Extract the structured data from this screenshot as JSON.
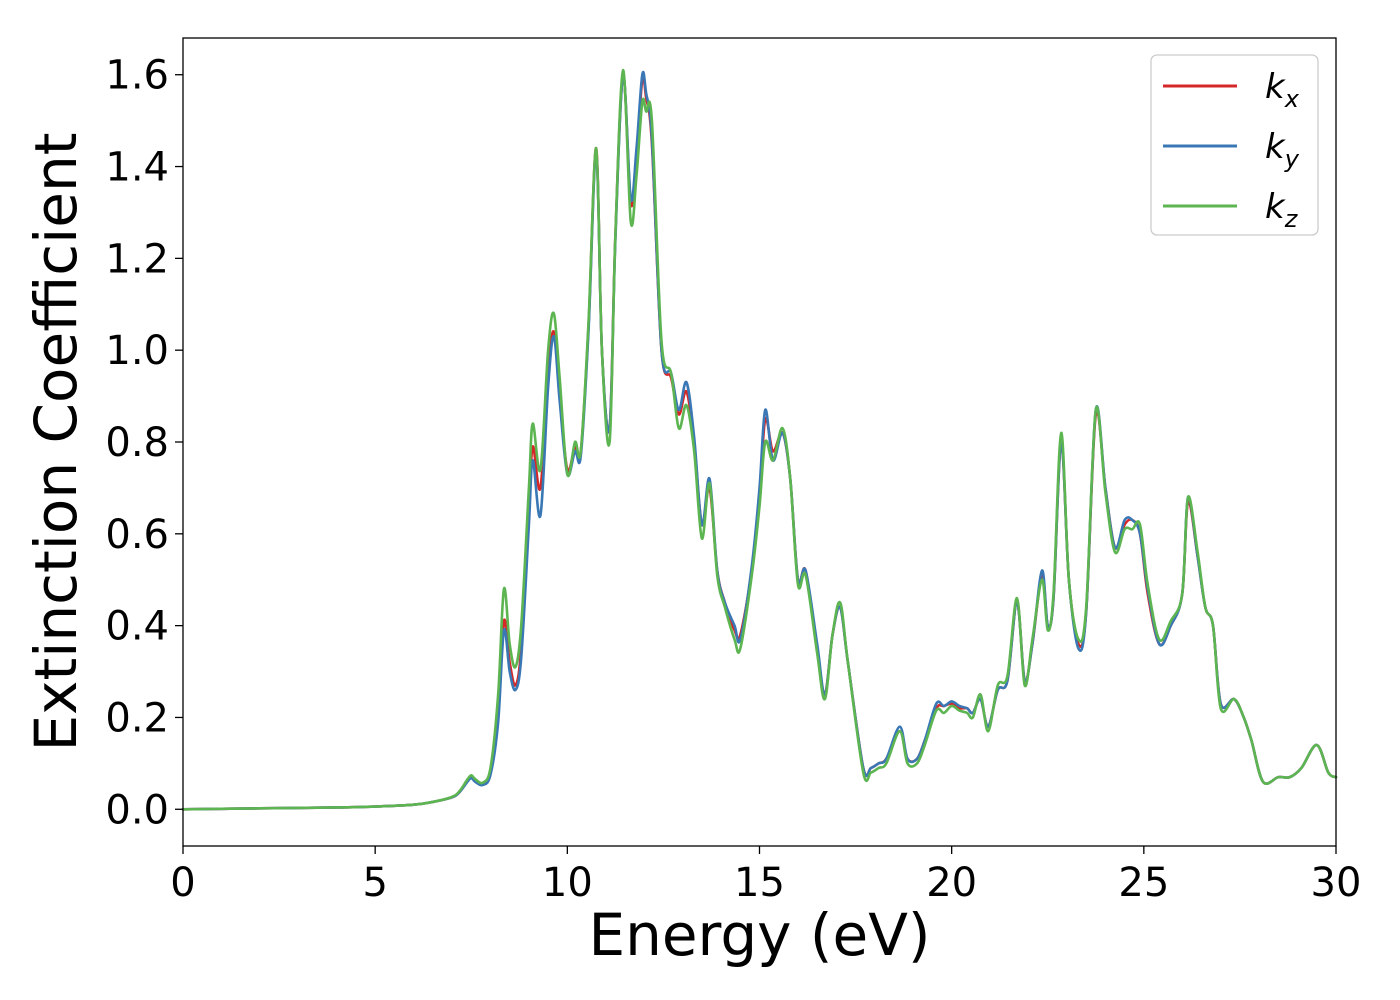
{
  "chart_data": {
    "type": "line",
    "title": "",
    "xlabel": "Energy (eV)",
    "ylabel": "Extinction Coefficient",
    "xlim": [
      0,
      30
    ],
    "ylim": [
      -0.08,
      1.68
    ],
    "xticks": [
      0,
      5,
      10,
      15,
      20,
      25,
      30
    ],
    "yticks": [
      0.0,
      0.2,
      0.4,
      0.6,
      0.8,
      1.0,
      1.2,
      1.4,
      1.6
    ],
    "ytick_format": 1,
    "grid": false,
    "legend_position": "top-right",
    "colors": {
      "kx": "#d62728",
      "ky": "#3a78b5",
      "kz": "#5db552"
    },
    "series": [
      {
        "name": "k_x",
        "legend_main": "k",
        "legend_sub": "x",
        "color": "#d62728",
        "x": [
          0,
          2,
          4,
          5,
          6,
          6.5,
          7,
          7.2,
          7.4,
          7.5,
          7.6,
          7.8,
          8.0,
          8.2,
          8.35,
          8.5,
          8.65,
          8.8,
          9.0,
          9.1,
          9.3,
          9.5,
          9.65,
          9.8,
          10.0,
          10.2,
          10.35,
          10.55,
          10.75,
          10.9,
          11.1,
          11.25,
          11.45,
          11.65,
          11.8,
          11.95,
          12.05,
          12.2,
          12.45,
          12.7,
          12.9,
          13.1,
          13.3,
          13.5,
          13.7,
          13.9,
          14.1,
          14.35,
          14.5,
          14.8,
          15.0,
          15.15,
          15.35,
          15.6,
          15.8,
          16.0,
          16.2,
          16.5,
          16.7,
          16.9,
          17.1,
          17.3,
          17.7,
          17.9,
          18.1,
          18.3,
          18.65,
          18.85,
          19.1,
          19.3,
          19.6,
          19.8,
          20.0,
          20.2,
          20.4,
          20.55,
          20.75,
          20.95,
          21.2,
          21.45,
          21.7,
          21.9,
          22.1,
          22.35,
          22.5,
          22.65,
          22.85,
          23.05,
          23.3,
          23.5,
          23.75,
          24.0,
          24.25,
          24.5,
          24.7,
          24.9,
          25.1,
          25.4,
          25.7,
          26.0,
          26.15,
          26.4,
          26.6,
          26.8,
          27.0,
          27.35,
          27.6,
          27.8,
          28.1,
          28.5,
          28.8,
          29.1,
          29.5,
          29.8,
          30.0
        ],
        "y": [
          0,
          0.002,
          0.004,
          0.006,
          0.01,
          0.016,
          0.026,
          0.038,
          0.062,
          0.07,
          0.062,
          0.055,
          0.08,
          0.2,
          0.41,
          0.32,
          0.27,
          0.35,
          0.65,
          0.79,
          0.7,
          0.95,
          1.04,
          0.9,
          0.74,
          0.79,
          0.78,
          1.05,
          1.44,
          1.0,
          0.83,
          1.25,
          1.6,
          1.32,
          1.42,
          1.59,
          1.55,
          1.45,
          1.0,
          0.94,
          0.86,
          0.91,
          0.8,
          0.62,
          0.7,
          0.52,
          0.45,
          0.39,
          0.38,
          0.52,
          0.68,
          0.85,
          0.78,
          0.82,
          0.72,
          0.5,
          0.52,
          0.35,
          0.25,
          0.38,
          0.44,
          0.32,
          0.09,
          0.09,
          0.1,
          0.11,
          0.17,
          0.11,
          0.11,
          0.15,
          0.22,
          0.225,
          0.23,
          0.22,
          0.22,
          0.21,
          0.24,
          0.18,
          0.26,
          0.28,
          0.45,
          0.28,
          0.36,
          0.51,
          0.4,
          0.46,
          0.8,
          0.5,
          0.36,
          0.43,
          0.86,
          0.7,
          0.57,
          0.62,
          0.63,
          0.6,
          0.47,
          0.36,
          0.4,
          0.47,
          0.67,
          0.55,
          0.44,
          0.4,
          0.23,
          0.24,
          0.2,
          0.15,
          0.06,
          0.07,
          0.07,
          0.09,
          0.14,
          0.08,
          0.07
        ]
      },
      {
        "name": "k_y",
        "legend_main": "k",
        "legend_sub": "y",
        "color": "#3a78b5",
        "x": [
          0,
          2,
          4,
          5,
          6,
          6.5,
          7,
          7.2,
          7.4,
          7.5,
          7.6,
          7.8,
          8.0,
          8.2,
          8.35,
          8.5,
          8.65,
          8.8,
          9.0,
          9.1,
          9.3,
          9.5,
          9.65,
          9.8,
          10.0,
          10.2,
          10.35,
          10.55,
          10.75,
          10.9,
          11.1,
          11.25,
          11.45,
          11.65,
          11.8,
          11.95,
          12.05,
          12.2,
          12.45,
          12.7,
          12.9,
          13.1,
          13.3,
          13.5,
          13.7,
          13.9,
          14.1,
          14.35,
          14.5,
          14.8,
          15.0,
          15.15,
          15.35,
          15.6,
          15.8,
          16.0,
          16.2,
          16.5,
          16.7,
          16.9,
          17.1,
          17.3,
          17.7,
          17.9,
          18.1,
          18.3,
          18.65,
          18.85,
          19.1,
          19.3,
          19.6,
          19.8,
          20.0,
          20.2,
          20.4,
          20.55,
          20.75,
          20.95,
          21.2,
          21.45,
          21.7,
          21.9,
          22.1,
          22.35,
          22.5,
          22.65,
          22.85,
          23.05,
          23.3,
          23.5,
          23.75,
          24.0,
          24.25,
          24.5,
          24.7,
          24.9,
          25.1,
          25.4,
          25.7,
          26.0,
          26.15,
          26.4,
          26.6,
          26.8,
          27.0,
          27.35,
          27.6,
          27.8,
          28.1,
          28.5,
          28.8,
          29.1,
          29.5,
          29.8,
          30.0
        ],
        "y": [
          0,
          0.002,
          0.004,
          0.006,
          0.01,
          0.016,
          0.026,
          0.038,
          0.06,
          0.068,
          0.06,
          0.053,
          0.075,
          0.19,
          0.39,
          0.3,
          0.26,
          0.33,
          0.62,
          0.76,
          0.64,
          0.92,
          1.03,
          0.89,
          0.73,
          0.78,
          0.77,
          1.04,
          1.43,
          1.0,
          0.83,
          1.24,
          1.6,
          1.33,
          1.44,
          1.6,
          1.56,
          1.46,
          1.0,
          0.95,
          0.87,
          0.93,
          0.81,
          0.62,
          0.72,
          0.52,
          0.45,
          0.4,
          0.37,
          0.53,
          0.7,
          0.87,
          0.76,
          0.82,
          0.72,
          0.5,
          0.52,
          0.36,
          0.25,
          0.38,
          0.44,
          0.32,
          0.09,
          0.09,
          0.1,
          0.11,
          0.18,
          0.11,
          0.11,
          0.15,
          0.23,
          0.225,
          0.235,
          0.225,
          0.22,
          0.21,
          0.24,
          0.18,
          0.26,
          0.28,
          0.45,
          0.28,
          0.36,
          0.52,
          0.4,
          0.46,
          0.8,
          0.5,
          0.35,
          0.43,
          0.87,
          0.7,
          0.57,
          0.63,
          0.63,
          0.6,
          0.48,
          0.36,
          0.4,
          0.47,
          0.68,
          0.55,
          0.44,
          0.4,
          0.23,
          0.24,
          0.2,
          0.15,
          0.06,
          0.07,
          0.07,
          0.09,
          0.14,
          0.08,
          0.07
        ]
      },
      {
        "name": "k_z",
        "legend_main": "k",
        "legend_sub": "z",
        "color": "#5db552",
        "x": [
          0,
          2,
          4,
          5,
          6,
          6.5,
          7,
          7.2,
          7.4,
          7.5,
          7.6,
          7.8,
          8.0,
          8.2,
          8.35,
          8.5,
          8.65,
          8.8,
          9.0,
          9.1,
          9.3,
          9.5,
          9.65,
          9.8,
          10.0,
          10.2,
          10.35,
          10.55,
          10.75,
          10.9,
          11.1,
          11.25,
          11.45,
          11.65,
          11.8,
          11.95,
          12.05,
          12.2,
          12.45,
          12.7,
          12.9,
          13.1,
          13.3,
          13.5,
          13.7,
          13.9,
          14.1,
          14.35,
          14.5,
          14.8,
          15.0,
          15.15,
          15.35,
          15.6,
          15.8,
          16.0,
          16.2,
          16.5,
          16.7,
          16.9,
          17.1,
          17.3,
          17.7,
          17.9,
          18.1,
          18.3,
          18.65,
          18.85,
          19.1,
          19.3,
          19.6,
          19.8,
          20.0,
          20.2,
          20.4,
          20.55,
          20.75,
          20.95,
          21.2,
          21.45,
          21.7,
          21.9,
          22.1,
          22.35,
          22.5,
          22.65,
          22.85,
          23.05,
          23.3,
          23.5,
          23.75,
          24.0,
          24.25,
          24.5,
          24.7,
          24.9,
          25.1,
          25.4,
          25.7,
          26.0,
          26.15,
          26.4,
          26.6,
          26.8,
          27.0,
          27.35,
          27.6,
          27.8,
          28.1,
          28.5,
          28.8,
          29.1,
          29.5,
          29.8,
          30.0
        ],
        "y": [
          0,
          0.002,
          0.004,
          0.006,
          0.01,
          0.016,
          0.027,
          0.04,
          0.065,
          0.074,
          0.066,
          0.058,
          0.09,
          0.25,
          0.48,
          0.36,
          0.31,
          0.4,
          0.7,
          0.84,
          0.74,
          1.0,
          1.08,
          0.94,
          0.73,
          0.8,
          0.78,
          1.06,
          1.44,
          1.0,
          0.8,
          1.25,
          1.61,
          1.28,
          1.38,
          1.54,
          1.52,
          1.5,
          1.02,
          0.95,
          0.83,
          0.88,
          0.78,
          0.59,
          0.71,
          0.51,
          0.44,
          0.37,
          0.35,
          0.51,
          0.66,
          0.8,
          0.76,
          0.83,
          0.72,
          0.49,
          0.51,
          0.34,
          0.24,
          0.38,
          0.45,
          0.32,
          0.08,
          0.08,
          0.09,
          0.1,
          0.17,
          0.1,
          0.1,
          0.14,
          0.215,
          0.21,
          0.225,
          0.215,
          0.21,
          0.2,
          0.25,
          0.17,
          0.27,
          0.29,
          0.46,
          0.27,
          0.37,
          0.5,
          0.39,
          0.47,
          0.82,
          0.5,
          0.37,
          0.44,
          0.87,
          0.69,
          0.56,
          0.61,
          0.61,
          0.62,
          0.49,
          0.37,
          0.41,
          0.47,
          0.68,
          0.56,
          0.44,
          0.4,
          0.22,
          0.24,
          0.2,
          0.15,
          0.06,
          0.07,
          0.07,
          0.09,
          0.14,
          0.08,
          0.07
        ]
      }
    ]
  }
}
